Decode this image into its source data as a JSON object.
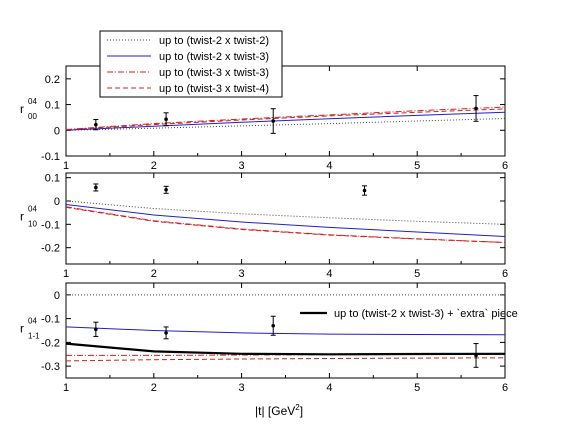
{
  "chart_data": [
    {
      "type": "line",
      "ylabel": "r",
      "ylabel_sup": "04",
      "ylabel_sub": "00",
      "xlim": [
        1,
        6
      ],
      "ylim": [
        -0.1,
        0.25
      ],
      "xticks": [
        1,
        2,
        3,
        4,
        5,
        6
      ],
      "yticks": [
        -0.1,
        0,
        0.1,
        0.2
      ],
      "ytick_labels": [
        "-0.1",
        "0",
        "0.1",
        "0.2"
      ],
      "x": [
        1,
        2,
        3,
        4,
        5,
        6
      ],
      "series": [
        {
          "name": "up to (twist-2 x twist-2)",
          "color": "#444444",
          "dash": "dotted",
          "values": [
            0.0,
            0.008,
            0.017,
            0.026,
            0.036,
            0.046
          ]
        },
        {
          "name": "up to (twist-2 x twist-3)",
          "color": "#1f1fcc",
          "dash": "solid",
          "values": [
            0.0,
            0.016,
            0.031,
            0.045,
            0.058,
            0.07
          ]
        },
        {
          "name": "up to (twist-3 x twist-3)",
          "color": "#cc2222",
          "dash": "dashdot",
          "values": [
            0.003,
            0.026,
            0.044,
            0.06,
            0.076,
            0.09
          ]
        },
        {
          "name": "up to (twist-3 x twist-4)",
          "color": "#cc2222",
          "dash": "dashed",
          "values": [
            0.002,
            0.022,
            0.04,
            0.056,
            0.07,
            0.083
          ]
        }
      ],
      "points": [
        {
          "x": 1.34,
          "y": 0.022,
          "err": 0.02
        },
        {
          "x": 2.14,
          "y": 0.043,
          "err": 0.025
        },
        {
          "x": 3.36,
          "y": 0.036,
          "err": 0.048
        },
        {
          "x": 5.67,
          "y": 0.085,
          "err": 0.05
        }
      ]
    },
    {
      "type": "line",
      "ylabel": "r",
      "ylabel_sup": "04",
      "ylabel_sub": "10",
      "xlim": [
        1,
        6
      ],
      "ylim": [
        -0.27,
        0.12
      ],
      "xticks": [
        1,
        2,
        3,
        4,
        5,
        6
      ],
      "yticks": [
        -0.2,
        -0.1,
        0,
        0.1
      ],
      "ytick_labels": [
        "-0.2",
        "-0.1",
        "0",
        "0.1"
      ],
      "x": [
        1,
        2,
        3,
        4,
        5,
        6
      ],
      "series": [
        {
          "color": "#444444",
          "dash": "dotted",
          "values": [
            0.0,
            -0.032,
            -0.055,
            -0.072,
            -0.087,
            -0.1
          ]
        },
        {
          "color": "#1f1fcc",
          "dash": "solid",
          "values": [
            -0.015,
            -0.06,
            -0.09,
            -0.113,
            -0.133,
            -0.152
          ]
        },
        {
          "color": "#cc2222",
          "dash": "dashdot",
          "values": [
            -0.025,
            -0.085,
            -0.12,
            -0.145,
            -0.162,
            -0.178
          ]
        },
        {
          "color": "#cc2222",
          "dash": "dashed",
          "values": [
            -0.027,
            -0.087,
            -0.122,
            -0.146,
            -0.163,
            -0.178
          ]
        }
      ],
      "points": [
        {
          "x": 1.34,
          "y": 0.058,
          "err": 0.015
        },
        {
          "x": 2.14,
          "y": 0.048,
          "err": 0.015
        },
        {
          "x": 4.4,
          "y": 0.045,
          "err": 0.02
        }
      ]
    },
    {
      "type": "line",
      "ylabel": "r",
      "ylabel_sup": "04",
      "ylabel_sub": "1-1",
      "xlim": [
        1,
        6
      ],
      "ylim": [
        -0.35,
        0.05
      ],
      "xticks": [
        1,
        2,
        3,
        4,
        5,
        6
      ],
      "yticks": [
        -0.3,
        -0.2,
        -0.1,
        0
      ],
      "ytick_labels": [
        "-0.3",
        "-0.2",
        "-0.1",
        "0"
      ],
      "xtick_labels": [
        "1",
        "2",
        "3",
        "4",
        "5",
        "6"
      ],
      "annotation": "up to (twist-2 x twist-3) + `extra` piece",
      "x": [
        1,
        2,
        3,
        4,
        5,
        6
      ],
      "series": [
        {
          "color": "#444444",
          "dash": "dotted",
          "values": [
            0.0,
            0.0,
            0.0,
            0.0,
            0.0,
            0.0
          ]
        },
        {
          "color": "#1f1fcc",
          "dash": "solid",
          "values": [
            -0.135,
            -0.15,
            -0.16,
            -0.165,
            -0.167,
            -0.168
          ]
        },
        {
          "color": "#cc2222",
          "dash": "dashdot",
          "values": [
            -0.255,
            -0.255,
            -0.253,
            -0.252,
            -0.251,
            -0.25
          ]
        },
        {
          "color": "#cc2222",
          "dash": "dashed",
          "values": [
            -0.278,
            -0.273,
            -0.27,
            -0.268,
            -0.266,
            -0.265
          ]
        },
        {
          "color": "#000000",
          "dash": "thick",
          "values": [
            -0.205,
            -0.238,
            -0.248,
            -0.25,
            -0.249,
            -0.248
          ]
        }
      ],
      "points": [
        {
          "x": 1.34,
          "y": -0.145,
          "err": 0.03
        },
        {
          "x": 2.14,
          "y": -0.16,
          "err": 0.025
        },
        {
          "x": 3.36,
          "y": -0.13,
          "err": 0.04
        },
        {
          "x": 5.67,
          "y": -0.255,
          "err": 0.05
        }
      ]
    }
  ],
  "x_axis_label": "|t|    [GeV",
  "x_axis_label_sup": "2",
  "x_axis_label_end": "]"
}
